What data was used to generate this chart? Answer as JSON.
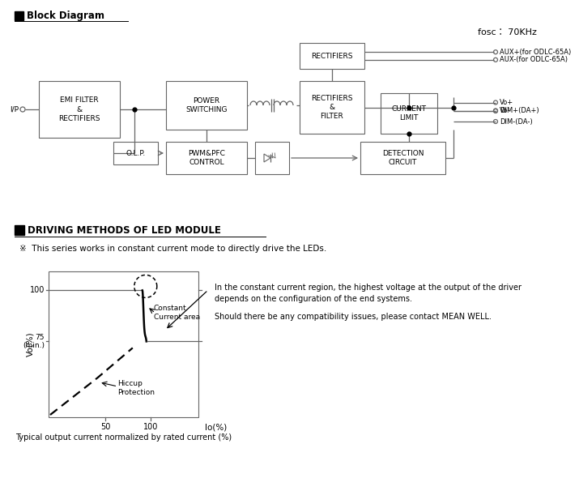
{
  "bg_color": "#ffffff",
  "title_block": "Block Diagram",
  "title_driving": "DRIVING METHODS OF LED MODULE",
  "fosc_label": "fosc： 70KHz",
  "note_text": "※  This series works in constant current mode to directly drive the LEDs.",
  "ylabel": "Vo(%)",
  "xlabel": "Io(%)",
  "xlabel_note": "Typical output current normalized by rated current (%)",
  "right_text_line1": "In the constant current region, the highest voltage at the output of the driver",
  "right_text_line2": "depends on the configuration of the end systems.",
  "right_text_line3": "Should there be any compatibility issues, please contact MEAN WELL.",
  "outputs": [
    "AUX+(for ODLC-65A)",
    "AUX-(for ODLC-65A)",
    "Vo+",
    "Vo-",
    "DIM+(DA+)",
    "DIM-(DA-)"
  ]
}
